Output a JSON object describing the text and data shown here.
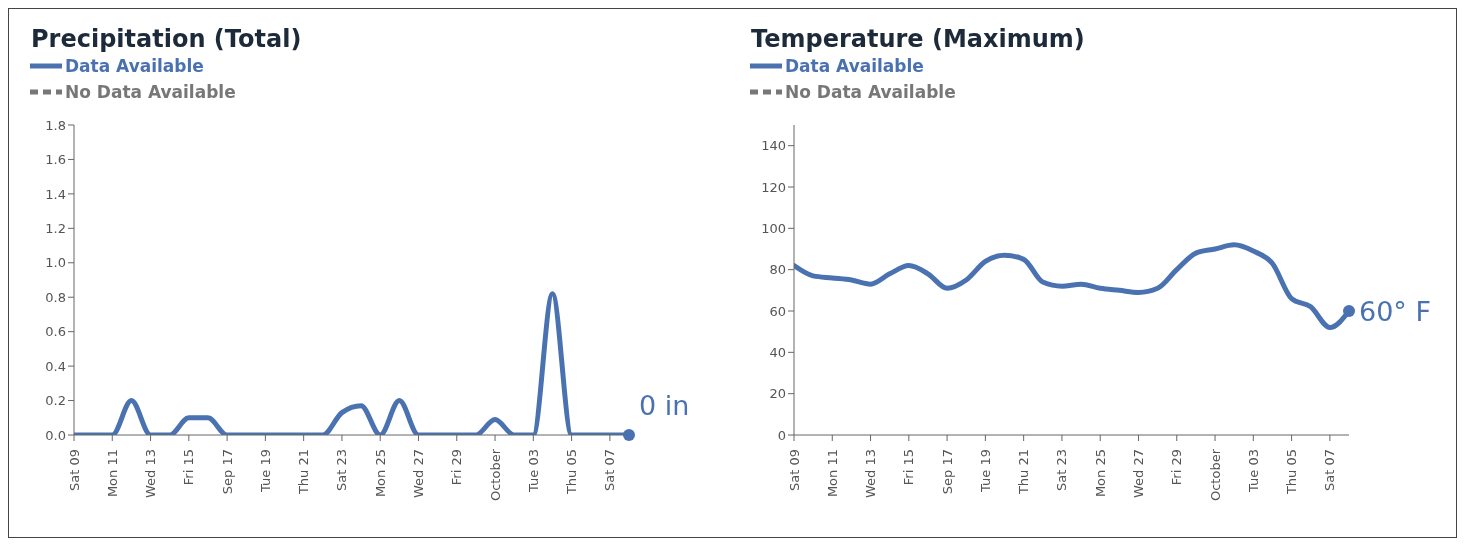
{
  "chart_data": [
    {
      "type": "line",
      "title": "Precipitation (Total)",
      "legend": "top left",
      "marker": "none",
      "x": [
        "--09-09",
        "--09-10",
        "--09-11",
        "--09-12",
        "--09-13",
        "--09-14",
        "--09-15",
        "--09-16",
        "--09-17",
        "--09-18",
        "--09-19",
        "--09-20",
        "--09-21",
        "--09-22",
        "--09-23",
        "--09-24",
        "--09-25",
        "--09-26",
        "--09-27",
        "--09-28",
        "--09-29",
        "--09-30",
        "--10-01",
        "--10-02",
        "--10-03",
        "--10-04",
        "--10-05",
        "--10-06",
        "--10-07",
        "--10-08"
      ],
      "series": [
        {
          "name": "Data Available",
          "color": "#4a72b0",
          "line_style": "solid",
          "values": [
            0,
            0,
            0,
            0.2,
            0,
            0,
            0.1,
            0.1,
            0,
            0,
            0,
            0,
            0,
            0,
            0.13,
            0.17,
            0,
            0.2,
            0,
            0,
            0,
            0,
            0.09,
            0,
            0,
            0.82,
            0,
            0,
            0,
            0
          ]
        },
        {
          "name": "No Data Available",
          "color": "#777777",
          "line_style": "dashed",
          "values": [
            null,
            null,
            null,
            null,
            null,
            null,
            null,
            null,
            null,
            null,
            null,
            null,
            null,
            null,
            null,
            null,
            null,
            null,
            null,
            null,
            null,
            null,
            null,
            null,
            null,
            null,
            null,
            null,
            null,
            null
          ]
        }
      ],
      "xlim": [
        "--09-09",
        "--10-08"
      ],
      "xticks": [
        {
          "value": "--09-09",
          "label": "Sat 09"
        },
        {
          "value": "--09-11",
          "label": "Mon 11"
        },
        {
          "value": "--09-13",
          "label": "Wed 13"
        },
        {
          "value": "--09-15",
          "label": "Fri 15"
        },
        {
          "value": "--09-17",
          "label": "Sep 17"
        },
        {
          "value": "--09-19",
          "label": "Tue 19"
        },
        {
          "value": "--09-21",
          "label": "Thu 21"
        },
        {
          "value": "--09-23",
          "label": "Sat 23"
        },
        {
          "value": "--09-25",
          "label": "Mon 25"
        },
        {
          "value": "--09-27",
          "label": "Wed 27"
        },
        {
          "value": "--09-29",
          "label": "Fri 29"
        },
        {
          "value": "--10-01",
          "label": "October"
        },
        {
          "value": "--10-03",
          "label": "Tue 03"
        },
        {
          "value": "--10-05",
          "label": "Thu 05"
        },
        {
          "value": "--10-07",
          "label": "Sat 07"
        }
      ],
      "ylim": [
        0,
        1.8
      ],
      "yticks": [
        {
          "value": 0,
          "label": "0.0"
        },
        0.2,
        0.4,
        0.6,
        0.8,
        {
          "value": 1,
          "label": "1.0"
        },
        1.2,
        1.4,
        1.6,
        1.8
      ],
      "grid": false,
      "annotations": [
        {
          "text": "0 in",
          "x": "--10-08",
          "y": 0
        }
      ]
    },
    {
      "type": "line",
      "title": "Temperature (Maximum)",
      "legend": "top left",
      "marker": "none",
      "x": [
        "--09-09",
        "--09-10",
        "--09-11",
        "--09-12",
        "--09-13",
        "--09-14",
        "--09-15",
        "--09-16",
        "--09-17",
        "--09-18",
        "--09-19",
        "--09-20",
        "--09-21",
        "--09-22",
        "--09-23",
        "--09-24",
        "--09-25",
        "--09-26",
        "--09-27",
        "--09-28",
        "--09-29",
        "--09-30",
        "--10-01",
        "--10-02",
        "--10-03",
        "--10-04",
        "--10-05",
        "--10-06",
        "--10-07",
        "--10-08"
      ],
      "series": [
        {
          "name": "Data Available",
          "color": "#4a72b0",
          "line_style": "solid",
          "values": [
            82,
            77,
            76,
            75,
            73,
            78,
            82,
            78,
            71,
            75,
            84,
            87,
            85,
            74,
            72,
            73,
            71,
            70,
            69,
            71,
            80,
            88,
            90,
            92,
            89,
            83,
            66,
            62,
            52,
            60
          ]
        },
        {
          "name": "No Data Available",
          "color": "#777777",
          "line_style": "dashed",
          "values": [
            null,
            null,
            null,
            null,
            null,
            null,
            null,
            null,
            null,
            null,
            null,
            null,
            null,
            null,
            null,
            null,
            null,
            null,
            null,
            null,
            null,
            null,
            null,
            null,
            null,
            null,
            null,
            null,
            null,
            null
          ]
        }
      ],
      "xlim": [
        "--09-09",
        "--10-08"
      ],
      "xticks": [
        {
          "value": "--09-09",
          "label": "Sat 09"
        },
        {
          "value": "--09-11",
          "label": "Mon 11"
        },
        {
          "value": "--09-13",
          "label": "Wed 13"
        },
        {
          "value": "--09-15",
          "label": "Fri 15"
        },
        {
          "value": "--09-17",
          "label": "Sep 17"
        },
        {
          "value": "--09-19",
          "label": "Tue 19"
        },
        {
          "value": "--09-21",
          "label": "Thu 21"
        },
        {
          "value": "--09-23",
          "label": "Sat 23"
        },
        {
          "value": "--09-25",
          "label": "Mon 25"
        },
        {
          "value": "--09-27",
          "label": "Wed 27"
        },
        {
          "value": "--09-29",
          "label": "Fri 29"
        },
        {
          "value": "--10-01",
          "label": "October"
        },
        {
          "value": "--10-03",
          "label": "Tue 03"
        },
        {
          "value": "--10-05",
          "label": "Thu 05"
        },
        {
          "value": "--10-07",
          "label": "Sat 07"
        }
      ],
      "ylim": [
        0,
        150
      ],
      "yticks": [
        0,
        20,
        40,
        60,
        80,
        100,
        120,
        140
      ],
      "grid": false,
      "annotations": [
        {
          "text": "60° F",
          "x": "--10-08",
          "y": 60
        }
      ]
    }
  ]
}
